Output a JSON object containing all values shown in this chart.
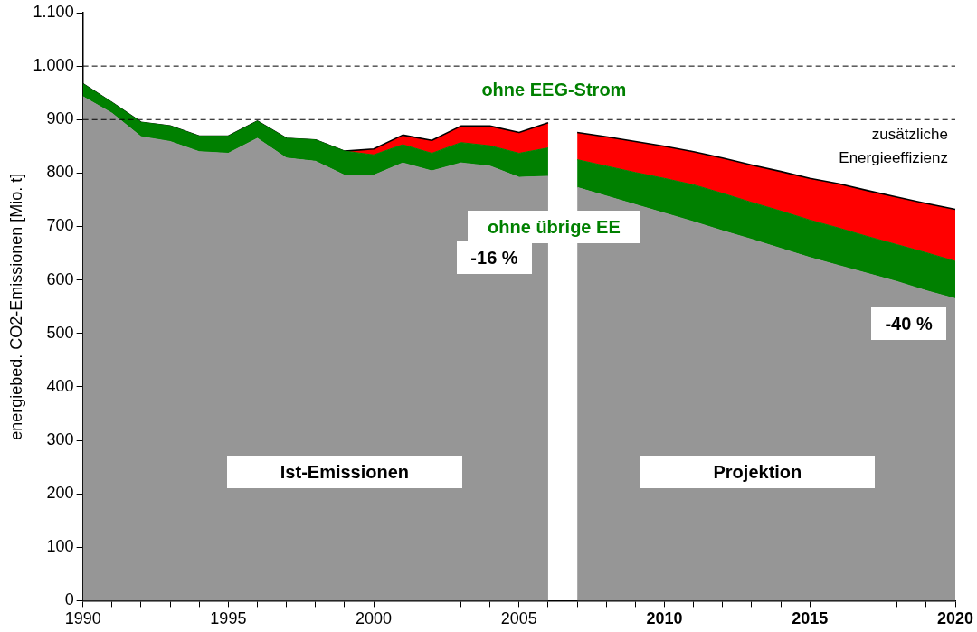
{
  "chart_data": {
    "type": "area",
    "stacked": true,
    "ylabel": "energiebed. CO2-Emissionen [Mio. t]",
    "x": [
      1990,
      1991,
      1992,
      1993,
      1994,
      1995,
      1996,
      1997,
      1998,
      1999,
      2000,
      2001,
      2002,
      2003,
      2004,
      2005,
      2006,
      2006.5,
      2007,
      2008,
      2009,
      2010,
      2011,
      2012,
      2013,
      2014,
      2015,
      2016,
      2017,
      2018,
      2019,
      2020
    ],
    "series": [
      {
        "color": "#969696",
        "values": [
          943,
          912,
          868,
          859,
          840,
          837,
          865,
          828,
          822,
          796,
          796,
          819,
          804,
          819,
          813,
          792,
          794,
          null,
          773,
          757,
          741,
          725,
          709,
          692,
          676,
          659,
          642,
          627,
          612,
          597,
          580,
          565
        ]
      },
      {
        "color": "#008000",
        "values": [
          24,
          20,
          27,
          29,
          29,
          32,
          32,
          37,
          40,
          45,
          38,
          34,
          33,
          38,
          38,
          45,
          53,
          null,
          52,
          56,
          60,
          65,
          69,
          70,
          69,
          70,
          70,
          70,
          69,
          69,
          71,
          70
        ]
      },
      {
        "color": "#ff0000",
        "values": [
          0,
          0,
          0,
          0,
          0,
          0,
          0,
          0,
          0,
          0,
          11,
          18,
          24,
          31,
          37,
          39,
          47,
          null,
          51,
          55,
          58,
          60,
          62,
          66,
          70,
          74,
          78,
          83,
          86,
          89,
          92,
          97
        ]
      }
    ],
    "xlim": [
      1990,
      2020
    ],
    "xticks": [
      1990,
      {
        "value": 1991,
        "label": null
      },
      {
        "value": 1992,
        "label": null
      },
      {
        "value": 1993,
        "label": null
      },
      {
        "value": 1994,
        "label": null
      },
      1995,
      {
        "value": 1996,
        "label": null
      },
      {
        "value": 1997,
        "label": null
      },
      {
        "value": 1998,
        "label": null
      },
      {
        "value": 1999,
        "label": null
      },
      2000,
      {
        "value": 2001,
        "label": null
      },
      {
        "value": 2002,
        "label": null
      },
      {
        "value": 2003,
        "label": null
      },
      {
        "value": 2004,
        "label": null
      },
      2005,
      {
        "value": 2006,
        "label": null
      },
      {
        "value": 2007,
        "label": null
      },
      {
        "value": 2008,
        "label": null
      },
      {
        "value": 2009,
        "label": null
      },
      2010,
      {
        "value": 2011,
        "label": null
      },
      {
        "value": 2012,
        "label": null
      },
      {
        "value": 2013,
        "label": null
      },
      {
        "value": 2014,
        "label": null
      },
      2015,
      {
        "value": 2016,
        "label": null
      },
      {
        "value": 2017,
        "label": null
      },
      {
        "value": 2018,
        "label": null
      },
      {
        "value": 2019,
        "label": null
      },
      2020
    ],
    "ylim": [
      0,
      1100
    ],
    "yticks": [
      0,
      100,
      200,
      300,
      400,
      500,
      600,
      700,
      800,
      900,
      {
        "value": 1000,
        "label": "1.000"
      },
      {
        "value": 1100,
        "label": "1.100"
      }
    ],
    "grid": false,
    "legend": false,
    "ref_lines": [
      {
        "axis": "y",
        "value": 900,
        "label": null,
        "color": "#000000",
        "line_style": "dashed"
      },
      {
        "axis": "y",
        "value": 1000,
        "label": null,
        "color": "#000000",
        "line_style": "dashed"
      }
    ],
    "annotations": [
      "ohne EEG-Strom",
      "ohne übrige EE",
      "-16 %",
      "-40 %",
      "Ist-Emissionen",
      "Projektion",
      "zusätzliche Energieeffizienz"
    ]
  }
}
